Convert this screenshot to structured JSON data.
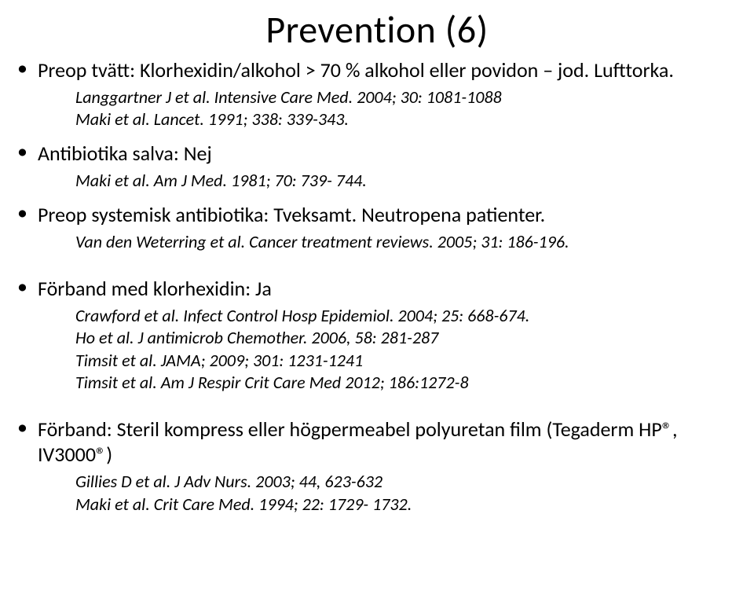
{
  "title": "Prevention (6)",
  "typography": {
    "title_fontsize": 48,
    "body_fontsize": 26,
    "ref_fontsize": 22,
    "font_family": "Calibri",
    "ref_style": "italic",
    "text_color": "#000000",
    "background_color": "#ffffff"
  },
  "bullets": [
    {
      "main": "Preop tvätt: Klorhexidin/alkohol > 70 % alkohol eller povidon – jod. Lufttorka.",
      "refs": [
        "Langgartner J et al. Intensive Care Med. 2004; 30: 1081-1088",
        "Maki et al. Lancet. 1991; 338: 339-343."
      ]
    },
    {
      "main": "Antibiotika salva: Nej",
      "refs": [
        "Maki et al. Am J Med. 1981; 70: 739- 744."
      ]
    },
    {
      "main": "Preop systemisk antibiotika: Tveksamt. Neutropena patienter.",
      "refs": [
        "Van den Weterring et al. Cancer treatment reviews. 2005; 31: 186-196."
      ]
    },
    {
      "main": "Förband med klorhexidin: Ja",
      "refs": [
        "Crawford et al. Infect Control Hosp Epidemiol. 2004; 25: 668-674.",
        "Ho et al. J antimicrob Chemother. 2006, 58: 281-287",
        "Timsit et al. JAMA; 2009; 301: 1231-1241",
        "Timsit et al. Am J Respir Crit Care Med 2012; 186:1272-8"
      ]
    },
    {
      "main": "Förband: Steril kompress eller högpermeabel polyuretan film (Tegaderm HP®, IV3000®)",
      "refs": [
        "Gillies D et al. J Adv Nurs. 2003; 44, 623-632",
        "Maki et al. Crit Care Med. 1994; 22: 1729- 1732."
      ]
    }
  ]
}
